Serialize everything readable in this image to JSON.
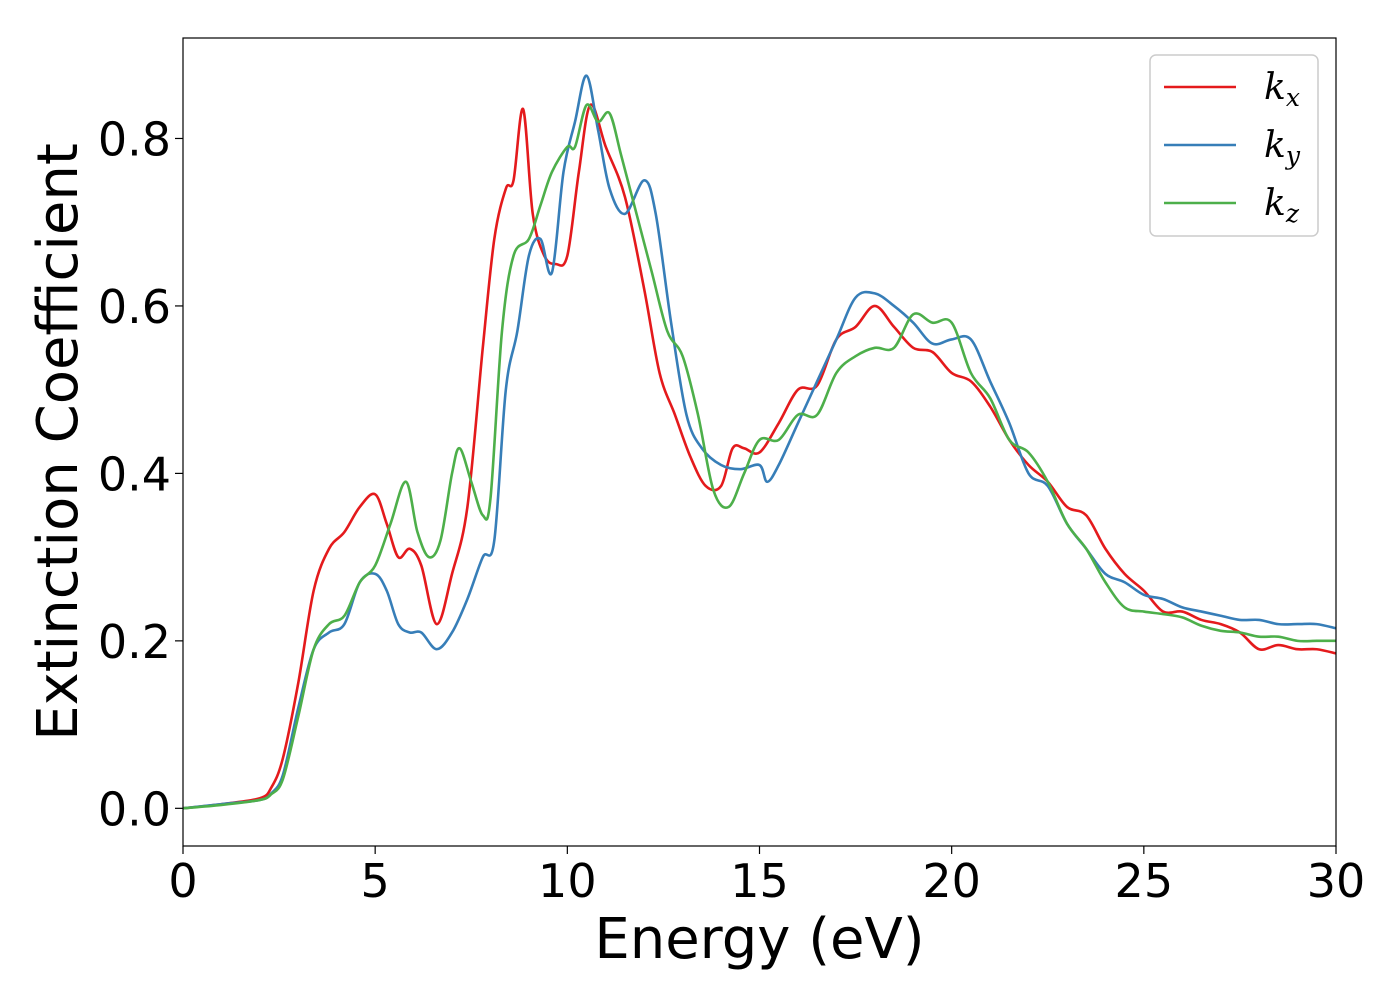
{
  "chart_data": {
    "type": "line",
    "title": "",
    "xlabel": "Energy (eV)",
    "ylabel": "Extinction Coefficient",
    "xlim": [
      0,
      30
    ],
    "ylim": [
      -0.045,
      0.92
    ],
    "xticks": [
      0,
      5,
      10,
      15,
      20,
      25,
      30
    ],
    "xtick_labels": [
      "0",
      "5",
      "10",
      "15",
      "20",
      "25",
      "30"
    ],
    "yticks": [
      0.0,
      0.2,
      0.4,
      0.6,
      0.8
    ],
    "ytick_labels": [
      "0.0",
      "0.2",
      "0.4",
      "0.6",
      "0.8"
    ],
    "grid": false,
    "legend_placement": "top-right",
    "series": [
      {
        "name": "k",
        "subscript": "x",
        "color": "#e41a1c",
        "x": [
          0,
          1,
          2,
          2.3,
          2.6,
          3.0,
          3.4,
          3.8,
          4.2,
          4.6,
          5.0,
          5.3,
          5.6,
          5.9,
          6.2,
          6.6,
          7.0,
          7.4,
          7.8,
          8.1,
          8.4,
          8.6,
          8.85,
          9.1,
          9.4,
          9.7,
          10.0,
          10.3,
          10.6,
          11.0,
          11.5,
          12.0,
          12.4,
          12.8,
          13.2,
          13.6,
          14.0,
          14.3,
          14.6,
          15.0,
          15.5,
          16.0,
          16.5,
          17.0,
          17.5,
          18.0,
          18.5,
          19.0,
          19.5,
          20.0,
          20.5,
          21.0,
          21.5,
          22.0,
          22.5,
          23.0,
          23.5,
          24.0,
          24.5,
          25.0,
          25.5,
          26.0,
          26.5,
          27.0,
          27.5,
          28.0,
          28.5,
          29.0,
          29.5,
          30.0
        ],
        "y": [
          0.0,
          0.005,
          0.012,
          0.025,
          0.06,
          0.15,
          0.26,
          0.31,
          0.33,
          0.36,
          0.375,
          0.34,
          0.3,
          0.31,
          0.29,
          0.22,
          0.28,
          0.36,
          0.55,
          0.68,
          0.74,
          0.75,
          0.835,
          0.71,
          0.66,
          0.65,
          0.66,
          0.76,
          0.84,
          0.79,
          0.73,
          0.62,
          0.52,
          0.47,
          0.42,
          0.385,
          0.385,
          0.43,
          0.43,
          0.425,
          0.46,
          0.5,
          0.505,
          0.56,
          0.575,
          0.6,
          0.575,
          0.55,
          0.545,
          0.52,
          0.51,
          0.48,
          0.44,
          0.41,
          0.39,
          0.36,
          0.35,
          0.31,
          0.28,
          0.26,
          0.235,
          0.235,
          0.225,
          0.22,
          0.21,
          0.19,
          0.195,
          0.19,
          0.19,
          0.185
        ]
      },
      {
        "name": "k",
        "subscript": "y",
        "color": "#377eb8",
        "x": [
          0,
          1,
          2,
          2.3,
          2.6,
          3.0,
          3.4,
          3.8,
          4.2,
          4.6,
          5.0,
          5.3,
          5.6,
          5.9,
          6.2,
          6.6,
          7.0,
          7.4,
          7.8,
          8.1,
          8.4,
          8.7,
          9.0,
          9.3,
          9.6,
          9.9,
          10.2,
          10.5,
          10.8,
          11.1,
          11.5,
          12.0,
          12.3,
          12.7,
          13.1,
          13.5,
          14.0,
          14.5,
          15.0,
          15.2,
          15.5,
          16.0,
          16.5,
          17.0,
          17.5,
          18.0,
          18.5,
          19.0,
          19.5,
          20.0,
          20.5,
          21.0,
          21.5,
          22.0,
          22.5,
          23.0,
          23.5,
          24.0,
          24.5,
          25.0,
          25.5,
          26.0,
          26.5,
          27.0,
          27.5,
          28.0,
          28.5,
          29.0,
          29.5,
          30.0
        ],
        "y": [
          0.0,
          0.005,
          0.01,
          0.018,
          0.04,
          0.12,
          0.19,
          0.21,
          0.22,
          0.27,
          0.28,
          0.26,
          0.22,
          0.21,
          0.21,
          0.19,
          0.21,
          0.25,
          0.3,
          0.32,
          0.5,
          0.57,
          0.66,
          0.68,
          0.64,
          0.76,
          0.82,
          0.875,
          0.81,
          0.74,
          0.71,
          0.75,
          0.71,
          0.58,
          0.47,
          0.43,
          0.41,
          0.405,
          0.41,
          0.39,
          0.41,
          0.46,
          0.51,
          0.56,
          0.61,
          0.615,
          0.6,
          0.58,
          0.555,
          0.56,
          0.56,
          0.51,
          0.46,
          0.4,
          0.385,
          0.34,
          0.31,
          0.28,
          0.27,
          0.255,
          0.25,
          0.24,
          0.235,
          0.23,
          0.225,
          0.225,
          0.22,
          0.22,
          0.22,
          0.215
        ]
      },
      {
        "name": "k",
        "subscript": "z",
        "color": "#4daf4a",
        "x": [
          0,
          1,
          2,
          2.3,
          2.6,
          3.0,
          3.4,
          3.8,
          4.2,
          4.6,
          5.0,
          5.4,
          5.8,
          6.1,
          6.4,
          6.7,
          7.0,
          7.2,
          7.5,
          7.8,
          8.0,
          8.3,
          8.6,
          9.0,
          9.3,
          9.6,
          10.0,
          10.2,
          10.5,
          10.8,
          11.1,
          11.4,
          11.8,
          12.2,
          12.6,
          13.0,
          13.4,
          13.8,
          14.2,
          14.6,
          15.0,
          15.5,
          16.0,
          16.5,
          17.0,
          17.5,
          18.0,
          18.5,
          19.0,
          19.5,
          20.0,
          20.5,
          21.0,
          21.5,
          22.0,
          22.5,
          23.0,
          23.5,
          24.0,
          24.5,
          25.0,
          25.5,
          26.0,
          26.5,
          27.0,
          27.5,
          28.0,
          28.5,
          29.0,
          29.5,
          30.0
        ],
        "y": [
          0.0,
          0.004,
          0.01,
          0.017,
          0.035,
          0.11,
          0.19,
          0.22,
          0.23,
          0.27,
          0.29,
          0.34,
          0.39,
          0.33,
          0.3,
          0.32,
          0.4,
          0.43,
          0.39,
          0.35,
          0.37,
          0.57,
          0.66,
          0.68,
          0.72,
          0.76,
          0.79,
          0.79,
          0.84,
          0.82,
          0.83,
          0.78,
          0.71,
          0.64,
          0.57,
          0.54,
          0.47,
          0.38,
          0.36,
          0.4,
          0.44,
          0.44,
          0.47,
          0.47,
          0.52,
          0.54,
          0.55,
          0.55,
          0.59,
          0.58,
          0.58,
          0.52,
          0.49,
          0.44,
          0.425,
          0.39,
          0.34,
          0.31,
          0.27,
          0.24,
          0.235,
          0.232,
          0.228,
          0.218,
          0.212,
          0.21,
          0.205,
          0.205,
          0.2,
          0.2,
          0.2
        ]
      }
    ]
  }
}
